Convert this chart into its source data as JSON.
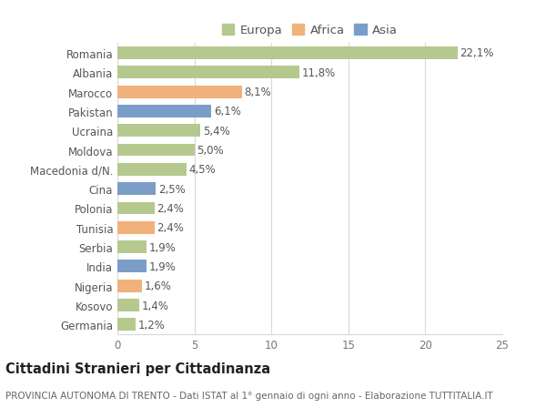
{
  "categories": [
    "Romania",
    "Albania",
    "Marocco",
    "Pakistan",
    "Ucraina",
    "Moldova",
    "Macedonia d/N.",
    "Cina",
    "Polonia",
    "Tunisia",
    "Serbia",
    "India",
    "Nigeria",
    "Kosovo",
    "Germania"
  ],
  "values": [
    22.1,
    11.8,
    8.1,
    6.1,
    5.4,
    5.0,
    4.5,
    2.5,
    2.4,
    2.4,
    1.9,
    1.9,
    1.6,
    1.4,
    1.2
  ],
  "continents": [
    "Europa",
    "Europa",
    "Africa",
    "Asia",
    "Europa",
    "Europa",
    "Europa",
    "Asia",
    "Europa",
    "Africa",
    "Europa",
    "Asia",
    "Africa",
    "Europa",
    "Europa"
  ],
  "continent_colors": {
    "Europa": "#b5c98e",
    "Africa": "#f0b27a",
    "Asia": "#7b9ec9"
  },
  "legend_labels": [
    "Europa",
    "Africa",
    "Asia"
  ],
  "legend_colors": [
    "#b5c98e",
    "#f0b27a",
    "#7b9ec9"
  ],
  "xlim": [
    0,
    25
  ],
  "xticks": [
    0,
    5,
    10,
    15,
    20,
    25
  ],
  "title": "Cittadini Stranieri per Cittadinanza",
  "subtitle": "PROVINCIA AUTONOMA DI TRENTO - Dati ISTAT al 1° gennaio di ogni anno - Elaborazione TUTTITALIA.IT",
  "background_color": "#ffffff",
  "grid_color": "#d8d8d8",
  "bar_height": 0.65,
  "label_fontsize": 8.5,
  "title_fontsize": 10.5,
  "subtitle_fontsize": 7.5,
  "tick_fontsize": 8.5,
  "legend_fontsize": 9.5
}
